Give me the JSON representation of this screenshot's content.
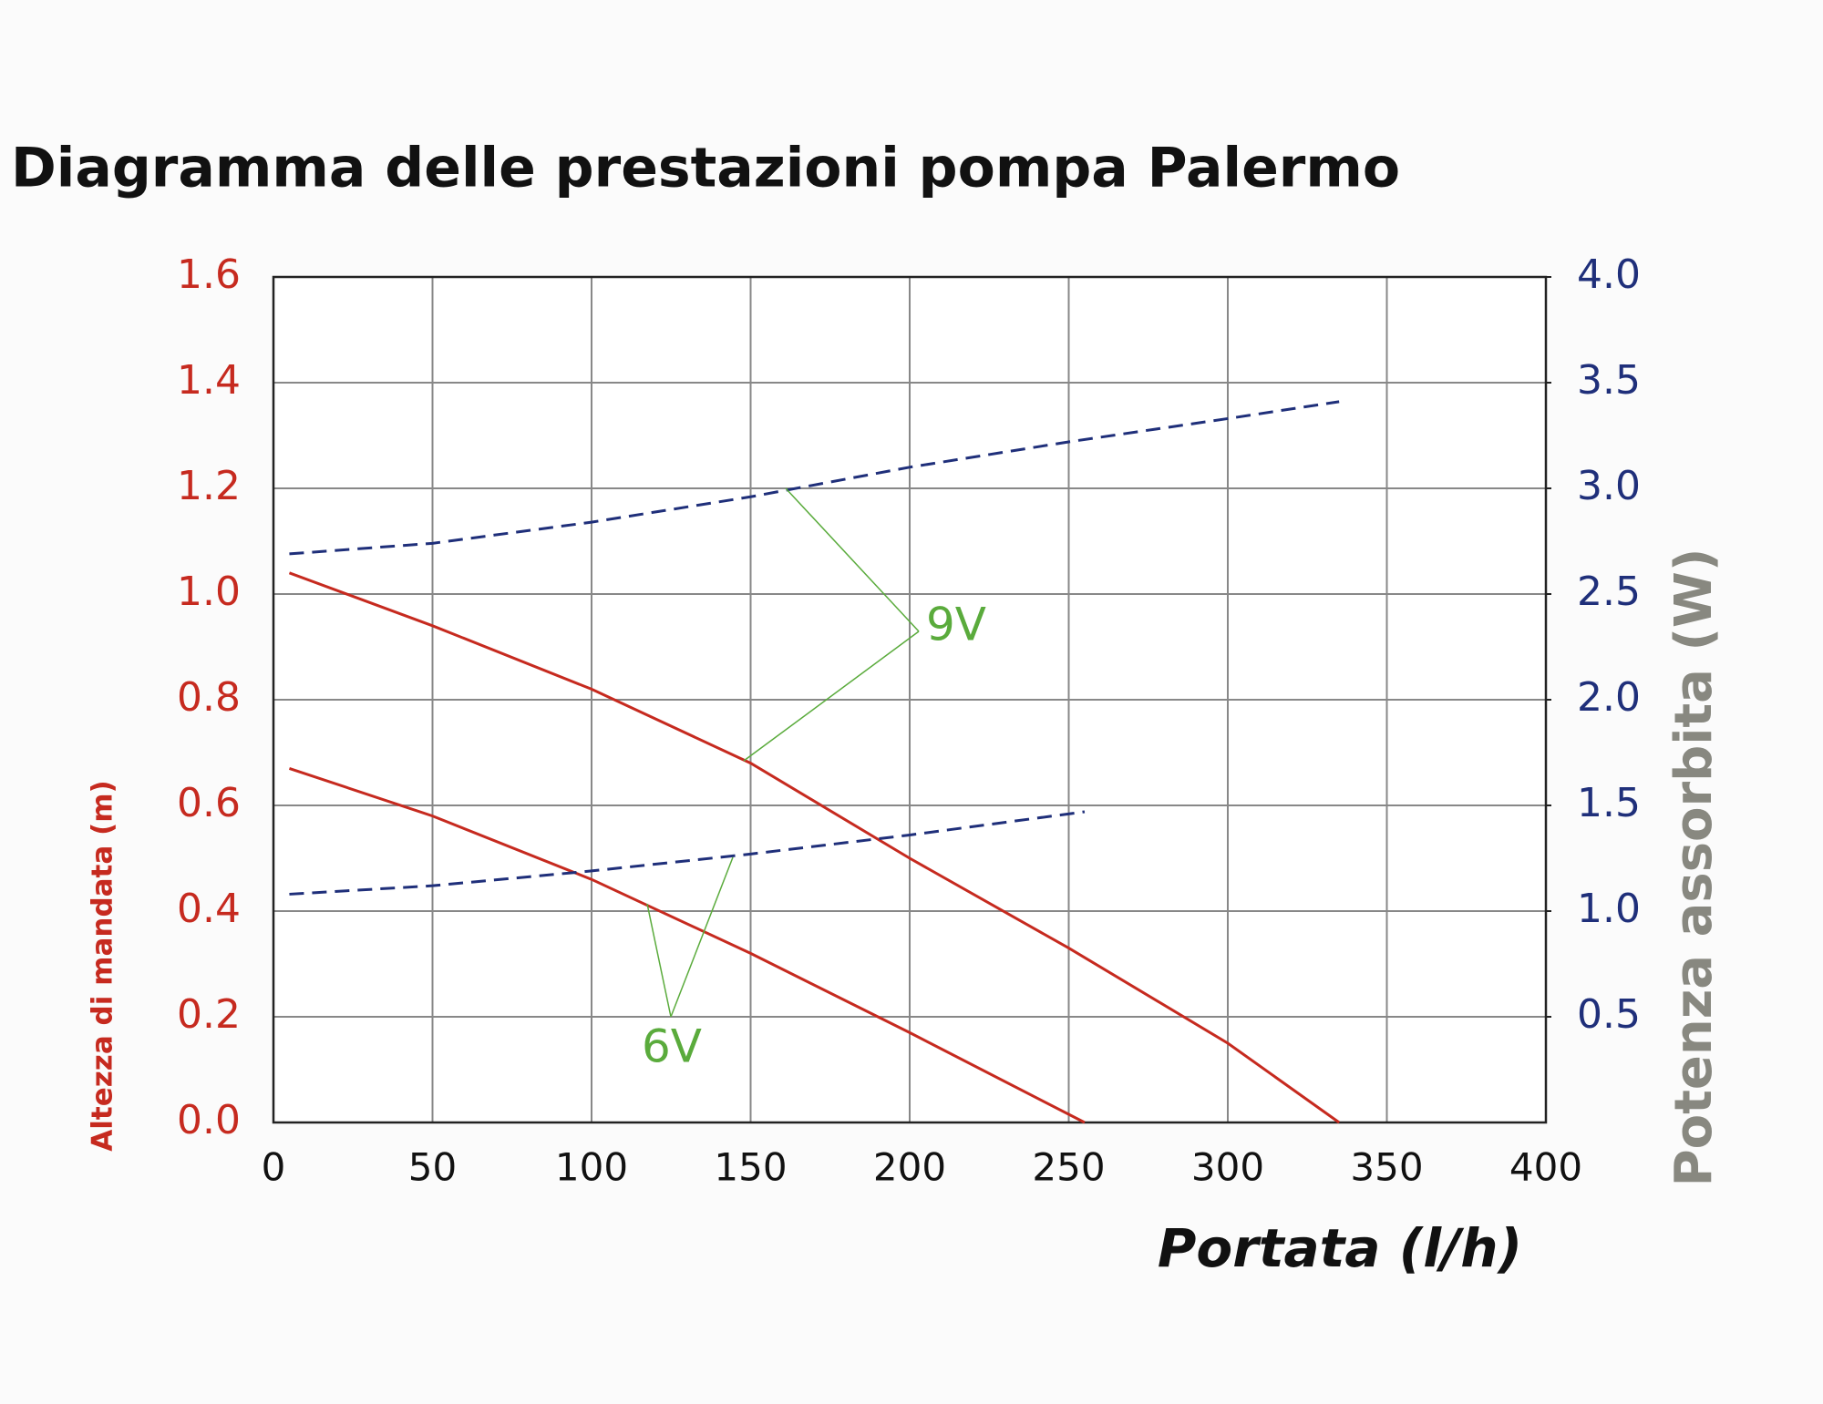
{
  "chart_data": {
    "type": "line",
    "title": "Diagramma delle prestazioni pompa Palermo",
    "x_label": "Portata (l/h)",
    "y_label": "Altezza di mandata (m)",
    "y2_label": "Potenza assorbita (W)",
    "xlim": [
      0,
      400
    ],
    "xticks": [
      0,
      50,
      100,
      150,
      200,
      250,
      300,
      350,
      400
    ],
    "ylim": [
      0,
      1.6
    ],
    "yticks": [
      {
        "value": 0,
        "label": "0.0"
      },
      0.2,
      0.4,
      0.6,
      0.8,
      {
        "value": 1,
        "label": "1.0"
      },
      1.2,
      1.4,
      1.6
    ],
    "y2lim": [
      0,
      4
    ],
    "y2ticks": [
      0.5,
      {
        "value": 1,
        "label": "1.0"
      },
      1.5,
      {
        "value": 2,
        "label": "2.0"
      },
      2.5,
      {
        "value": 3,
        "label": "3.0"
      },
      3.5,
      {
        "value": 4,
        "label": "4.0"
      }
    ],
    "grid": true,
    "series": [
      {
        "color": "#c62a1f",
        "x": [
          5,
          50,
          100,
          150,
          200,
          250,
          300,
          335
        ],
        "values": [
          1.04,
          0.94,
          0.82,
          0.68,
          0.5,
          0.33,
          0.15,
          0
        ]
      },
      {
        "color": "#c62a1f",
        "x": [
          5,
          50,
          100,
          150,
          200,
          255
        ],
        "values": [
          0.67,
          0.58,
          0.46,
          0.32,
          0.17,
          0
        ]
      },
      {
        "color": "#1f2f7a",
        "axis": "y2",
        "dashed": true,
        "x": [
          5,
          50,
          100,
          150,
          200,
          250,
          300,
          335
        ],
        "values": [
          2.69,
          2.74,
          2.84,
          2.96,
          3.1,
          3.22,
          3.33,
          3.41
        ]
      },
      {
        "color": "#1f2f7a",
        "axis": "y2",
        "dashed": true,
        "x": [
          5,
          50,
          100,
          150,
          200,
          255
        ],
        "values": [
          1.08,
          1.12,
          1.19,
          1.27,
          1.36,
          1.47
        ]
      }
    ],
    "annotations": [
      {
        "text": "9V",
        "color": "#5aab3c"
      },
      {
        "text": "6V",
        "color": "#5aab3c"
      }
    ]
  }
}
